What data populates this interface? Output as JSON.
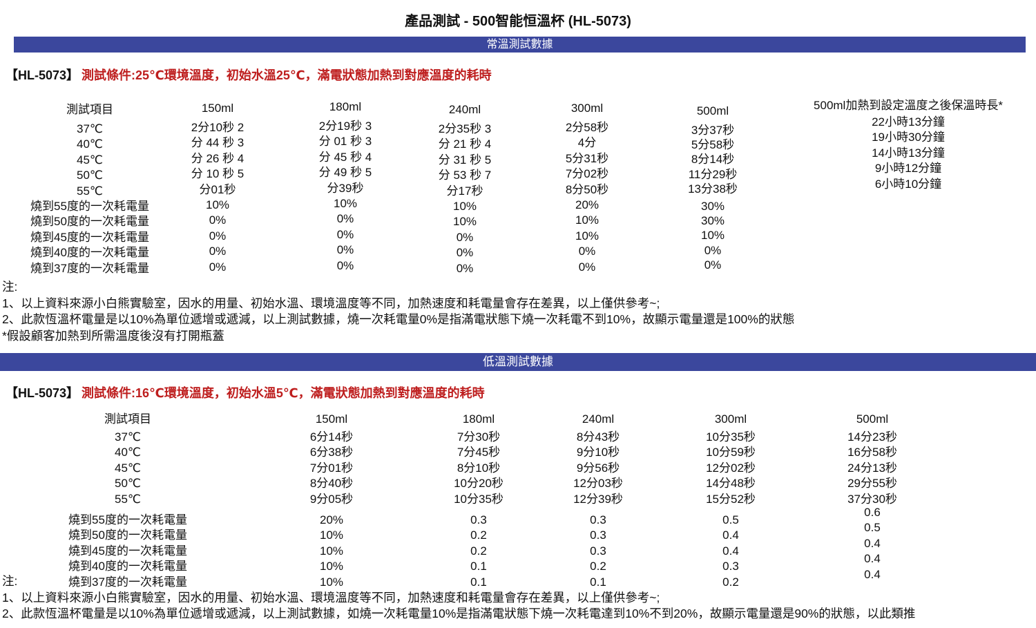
{
  "title": "產品測試 - 500智能恒溫杯 (HL-5073)",
  "colors": {
    "banner_blue": "#3B479D",
    "condition_red": "#BE1E1E"
  },
  "normal": {
    "banner": "常溫測試數據",
    "model": "【HL-5073】",
    "condition": "測試條件:25℃環境溫度，初始水溫25℃，滿電狀態加熱到對應溫度的耗時",
    "table": {
      "columns": [
        {
          "header": "測試項目",
          "times": [
            "37℃",
            "40℃",
            "45℃",
            "50℃",
            "55℃"
          ],
          "pcts": [
            "燒到55度的一次耗電量",
            "燒到50度的一次耗電量",
            "燒到45度的一次耗電量",
            "燒到40度的一次耗電量",
            "燒到37度的一次耗電量"
          ]
        },
        {
          "header": "150ml",
          "times": [
            "2分10秒 2",
            "分 44 秒  3",
            "分 26 秒  4",
            "分 10 秒  5",
            "分01秒"
          ],
          "pcts": [
            "10%",
            "0%",
            "0%",
            "0%",
            "0%"
          ]
        },
        {
          "header": "180ml",
          "times": [
            "2分19秒 3",
            "分 01 秒  3",
            "分 45 秒  4",
            "分 49 秒  5",
            "分39秒"
          ],
          "pcts": [
            "10%",
            "0%",
            "0%",
            "0%",
            "0%"
          ]
        },
        {
          "header": "240ml",
          "times": [
            "2分35秒 3",
            "分 21 秒  4",
            "分 31 秒  5",
            "分 53 秒  7",
            "分17秒"
          ],
          "pcts": [
            "10%",
            "10%",
            "0%",
            "0%",
            "0%"
          ]
        },
        {
          "header": "300ml",
          "times": [
            "2分58秒",
            "4分",
            "5分31秒",
            "7分02秒",
            "8分50秒"
          ],
          "pcts": [
            "20%",
            "10%",
            "10%",
            "0%",
            "0%"
          ]
        },
        {
          "header": "500ml",
          "times": [
            "3分37秒",
            "5分58秒",
            "8分14秒",
            "11分29秒",
            "13分38秒"
          ],
          "pcts": [
            "30%",
            "30%",
            "10%",
            "0%",
            "0%"
          ]
        },
        {
          "header": "500ml加熱到設定溫度之後保溫時長*",
          "times": [
            "22小時13分鐘",
            "19小時30分鐘",
            "14小時13分鐘",
            "9小時12分鐘",
            "6小時10分鐘"
          ],
          "pcts": []
        }
      ]
    },
    "notes": [
      "注:",
      "1、以上資料來源小白熊實驗室，因水的用量、初始水溫、環境溫度等不同，加熱速度和耗電量會存在差異，以上僅供參考~;",
      "2、此款恆溫杯電量是以10%為單位遞增或遞減，以上測試數據，燒一次耗電量0%是指滿電狀態下燒一次耗電不到10%，故顯示電量還是100%的狀態",
      "*假設顧客加熱到所需溫度後沒有打開瓶蓋"
    ]
  },
  "low": {
    "banner": "低溫測試數據",
    "model": "【HL-5073】",
    "condition": "測試條件:16℃環境溫度，初始水溫5℃，滿電狀態加熱到對應溫度的耗時",
    "table": {
      "columns": [
        {
          "header": "測試項目",
          "times": [
            "37℃",
            "40℃",
            "45℃",
            "50℃",
            "55℃"
          ],
          "pcts": [
            "燒到55度的一次耗電量",
            "燒到50度的一次耗電量",
            "燒到45度的一次耗電量",
            "燒到40度的一次耗電量",
            "燒到37度的一次耗電量"
          ]
        },
        {
          "header": "150ml",
          "times": [
            "6分14秒",
            "6分38秒",
            "7分01秒",
            "8分40秒",
            "9分05秒"
          ],
          "pcts": [
            "20%",
            "10%",
            "10%",
            "10%",
            "10%"
          ]
        },
        {
          "header": "180ml",
          "times": [
            "7分30秒",
            "7分45秒",
            "8分10秒",
            "10分20秒",
            "10分35秒"
          ],
          "pcts": [
            "0.3",
            "0.2",
            "0.2",
            "0.1",
            "0.1"
          ]
        },
        {
          "header": "240ml",
          "times": [
            "8分43秒",
            "9分10秒",
            "9分56秒",
            "12分03秒",
            "12分39秒"
          ],
          "pcts": [
            "0.3",
            "0.3",
            "0.3",
            "0.2",
            "0.1"
          ]
        },
        {
          "header": "300ml",
          "times": [
            "10分35秒",
            "10分59秒",
            "12分02秒",
            "14分48秒",
            "15分52秒"
          ],
          "pcts": [
            "0.5",
            "0.4",
            "0.4",
            "0.3",
            "0.2"
          ]
        },
        {
          "header": "500ml",
          "times": [
            "14分23秒",
            "16分58秒",
            "24分13秒",
            "29分55秒",
            "37分30秒"
          ],
          "pcts": [
            "0.6",
            "0.5",
            "0.4",
            "0.4",
            "0.4"
          ]
        }
      ]
    },
    "notes": [
      "注:",
      "1、以上資料來源小白熊實驗室，因水的用量、初始水溫、環境溫度等不同，加熱速度和耗電量會存在差異，以上僅供參考~;",
      "2、此款恆溫杯電量是以10%為單位遞增或遞減，以上測試數據，如燒一次耗電量10%是指滿電狀態下燒一次耗電達到10%不到20%，故顯示電量還是90%的狀態，以此類推"
    ]
  }
}
